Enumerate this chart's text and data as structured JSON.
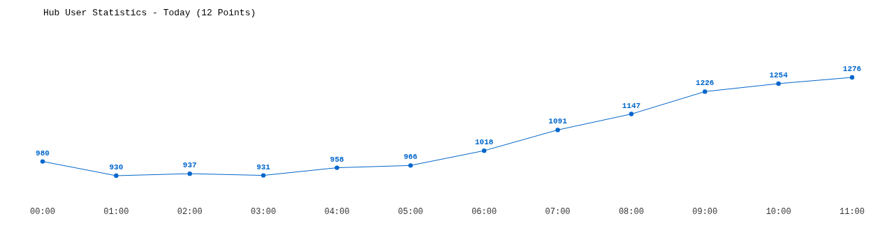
{
  "chart_data": {
    "type": "line",
    "title": "Hub User Statistics - Today (12 Points)",
    "categories": [
      "00:00",
      "01:00",
      "02:00",
      "03:00",
      "04:00",
      "05:00",
      "06:00",
      "07:00",
      "08:00",
      "09:00",
      "10:00",
      "11:00"
    ],
    "series": [
      {
        "color": "#0066cc",
        "values": [
          980,
          930,
          937,
          931,
          958,
          966,
          1018,
          1091,
          1147,
          1226,
          1254,
          1276
        ]
      }
    ],
    "data_labels": true,
    "marker": "circle",
    "relative": false
  }
}
